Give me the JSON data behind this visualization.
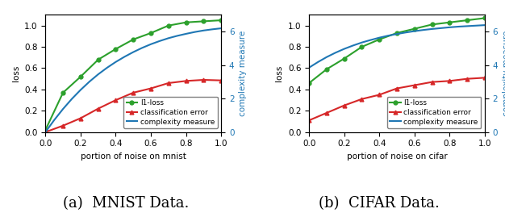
{
  "mnist": {
    "x": [
      0.0,
      0.1,
      0.2,
      0.3,
      0.4,
      0.5,
      0.6,
      0.7,
      0.8,
      0.9,
      1.0
    ],
    "l1_loss": [
      0.02,
      0.37,
      0.52,
      0.68,
      0.78,
      0.87,
      0.93,
      1.0,
      1.03,
      1.04,
      1.05
    ],
    "class_error": [
      0.0,
      0.06,
      0.13,
      0.22,
      0.3,
      0.37,
      0.41,
      0.46,
      0.48,
      0.49,
      0.485
    ],
    "complexity_x": [
      0.0,
      0.05,
      0.1,
      0.15,
      0.2,
      0.25,
      0.3,
      0.35,
      0.4,
      0.45,
      0.5,
      0.55,
      0.6,
      0.65,
      0.7,
      0.75,
      0.8,
      0.85,
      0.9,
      0.95,
      1.0
    ],
    "complexity_y": [
      0.0,
      0.72,
      1.38,
      1.98,
      2.52,
      3.01,
      3.45,
      3.84,
      4.19,
      4.5,
      4.78,
      5.03,
      5.25,
      5.44,
      5.61,
      5.75,
      5.87,
      5.98,
      6.07,
      6.14,
      6.2
    ],
    "xlabel": "portion of noise on mnist",
    "ylabel_left": "loss",
    "ylabel_right": "complexity measure",
    "caption": "(a)  MNIST Data."
  },
  "cifar": {
    "x": [
      0.0,
      0.1,
      0.2,
      0.3,
      0.4,
      0.5,
      0.6,
      0.7,
      0.8,
      0.9,
      1.0
    ],
    "l1_loss": [
      0.46,
      0.59,
      0.69,
      0.8,
      0.87,
      0.93,
      0.97,
      1.01,
      1.03,
      1.05,
      1.07
    ],
    "class_error": [
      0.11,
      0.18,
      0.25,
      0.31,
      0.35,
      0.41,
      0.44,
      0.47,
      0.48,
      0.5,
      0.51
    ],
    "complexity_x": [
      0.0,
      0.05,
      0.1,
      0.15,
      0.2,
      0.25,
      0.3,
      0.35,
      0.4,
      0.45,
      0.5,
      0.55,
      0.6,
      0.65,
      0.7,
      0.75,
      0.8,
      0.85,
      0.9,
      0.95,
      1.0
    ],
    "complexity_y": [
      3.85,
      4.18,
      4.48,
      4.74,
      4.97,
      5.17,
      5.35,
      5.5,
      5.64,
      5.76,
      5.86,
      5.95,
      6.03,
      6.1,
      6.16,
      6.21,
      6.26,
      6.3,
      6.33,
      6.36,
      6.39
    ],
    "xlabel": "portion of noise on cifar",
    "ylabel_left": "loss",
    "ylabel_right": "complexity measure",
    "caption": "(b)  CIFAR Data."
  },
  "colors": {
    "green": "#2ca02c",
    "red": "#d62728",
    "blue": "#1f77b4"
  },
  "ylim_left": [
    0.0,
    1.1
  ],
  "ylim_right": [
    0.0,
    7.0
  ],
  "yticks_right": [
    0,
    2,
    4,
    6
  ],
  "caption_fontsize": 13
}
